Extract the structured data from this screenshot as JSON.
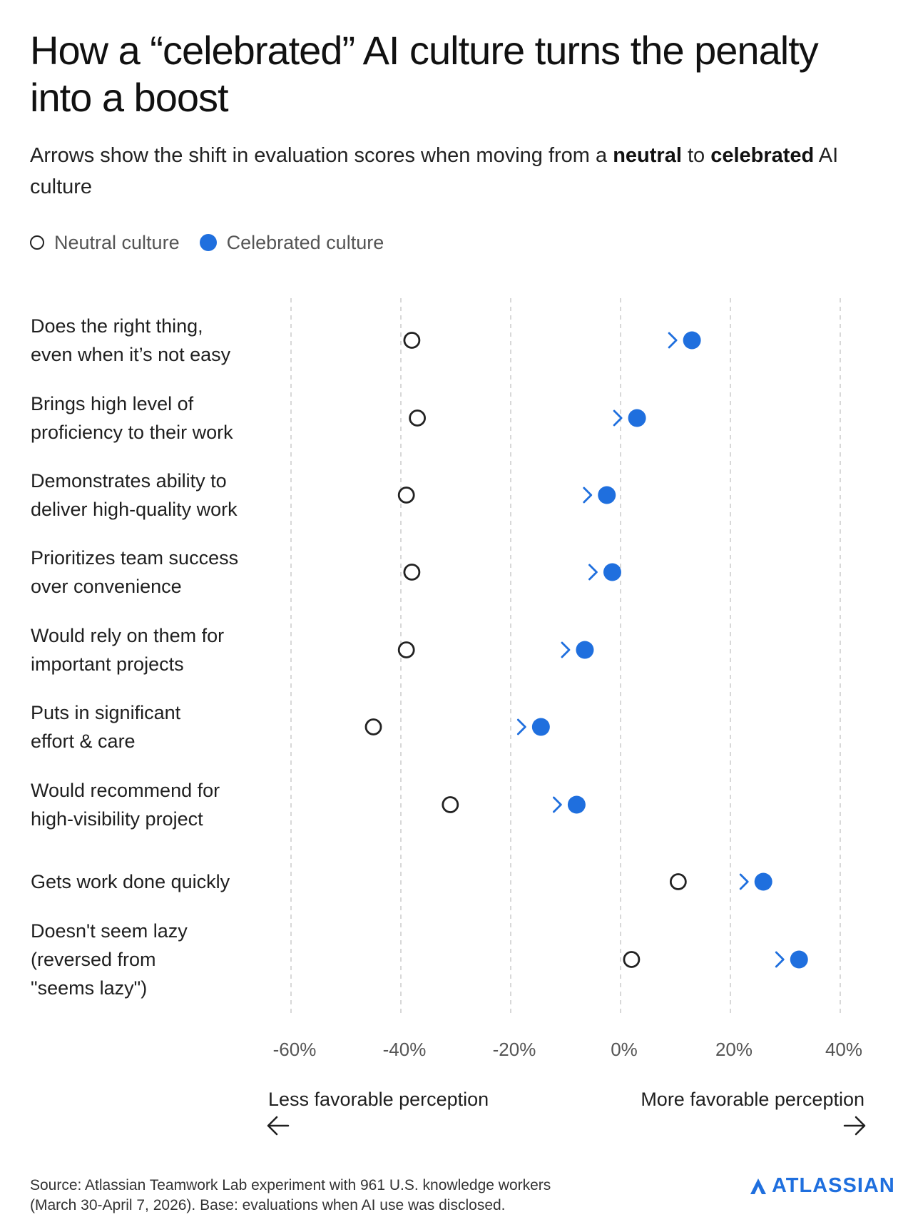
{
  "title": "How a “celebrated” AI culture turns the penalty into a boost",
  "subtitle": {
    "part1": "Arrows show the shift in evaluation scores when moving from a ",
    "bold1": "neutral",
    "part2": " to ",
    "bold2": "celebrated",
    "part3": " AI culture"
  },
  "legend": {
    "neutral": "Neutral culture",
    "celebrated": "Celebrated culture"
  },
  "colors": {
    "neutral_stroke": "#222222",
    "celebrated": "#1f6fde",
    "grid": "#cccccc",
    "dash_neutral": "#333333"
  },
  "chart_data": {
    "type": "dumbbell",
    "title": "How a “celebrated” AI culture turns the penalty into a boost",
    "xlim": [
      -60,
      40
    ],
    "xticks": [
      -60,
      -40,
      -20,
      0,
      20,
      40
    ],
    "xtick_labels": [
      "-60%",
      "-40%",
      "-20%",
      "0%",
      "20%",
      "40%"
    ],
    "grid": true,
    "legend_position": "top-left",
    "direction_labels": {
      "left": "Less favorable perception",
      "right": "More favorable perception"
    },
    "series": [
      {
        "name": "Neutral culture"
      },
      {
        "name": "Celebrated culture"
      }
    ],
    "rows": [
      {
        "label": [
          "Does the right thing,",
          "even when it’s not easy"
        ],
        "neutral": -38,
        "celebrated": 13
      },
      {
        "label": [
          "Brings high level of",
          "proficiency to their work"
        ],
        "neutral": -37,
        "celebrated": 3
      },
      {
        "label": [
          "Demonstrates ability to",
          "deliver high-quality work"
        ],
        "neutral": -39,
        "celebrated": -2.5
      },
      {
        "label": [
          "Prioritizes team success",
          "over convenience"
        ],
        "neutral": -38,
        "celebrated": -1.5
      },
      {
        "label": [
          "Would rely on them for",
          "important projects"
        ],
        "neutral": -39,
        "celebrated": -6.5
      },
      {
        "label": [
          "Puts in significant",
          "effort & care"
        ],
        "neutral": -45,
        "celebrated": -14.5
      },
      {
        "label": [
          "Would recommend for",
          "high-visibility project"
        ],
        "neutral": -31,
        "celebrated": -8
      },
      {
        "label": [
          "Gets work done quickly"
        ],
        "neutral": 10.5,
        "celebrated": 26
      },
      {
        "label": [
          "Doesn't seem lazy",
          "(reversed from",
          "\"seems lazy\")"
        ],
        "neutral": 2,
        "celebrated": 32.5
      }
    ]
  },
  "footer": {
    "source_line1": "Source: Atlassian Teamwork Lab experiment with 961 U.S. knowledge workers",
    "source_line2": "(March 30-April 7, 2026). Base: evaluations when AI use was disclosed.",
    "logo_text": "ATLASSIAN"
  }
}
